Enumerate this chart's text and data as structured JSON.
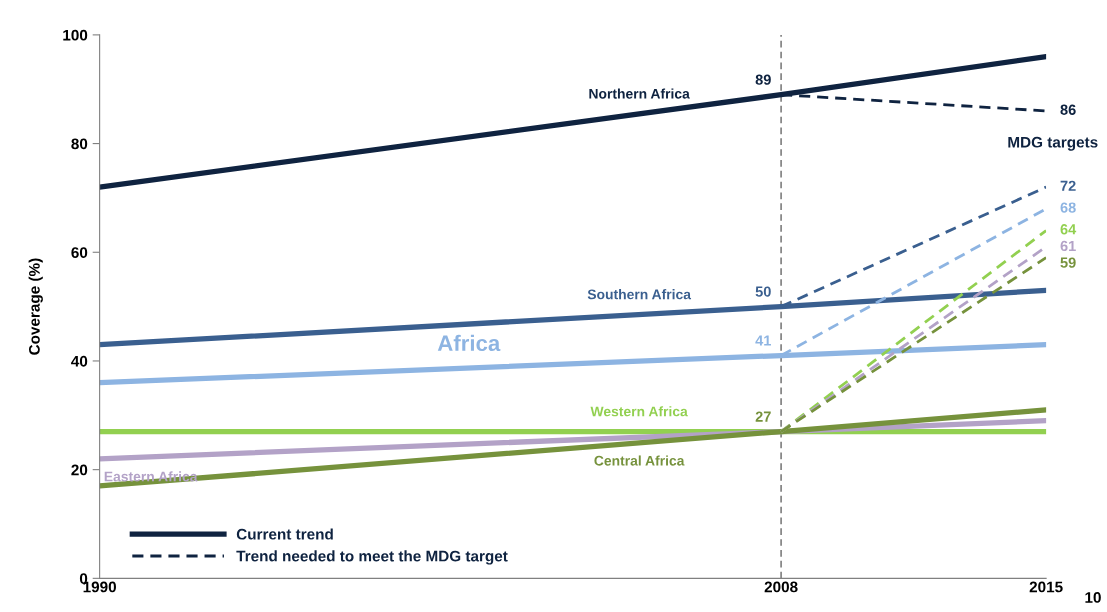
{
  "chart_data": {
    "type": "line",
    "ylabel": "Coverage (%)",
    "xlim": [
      1990,
      2015
    ],
    "xticks": [
      1990,
      2008,
      2015
    ],
    "ylim": [
      0,
      100
    ],
    "yticks": [
      0,
      20,
      40,
      60,
      80,
      100
    ],
    "grid": false,
    "marker": "none",
    "ref_lines": [
      {
        "axis": "x",
        "value": 2008,
        "color": "#808080",
        "line_style": "dashed"
      }
    ],
    "annotations": [
      "MDG targets",
      "Current trend",
      "Trend needed to meet the MDG target",
      "10"
    ],
    "series": [
      {
        "name": "Northern Africa",
        "color": "#0f2340",
        "x": [
          1990,
          2008,
          2015
        ],
        "values": [
          72,
          89,
          96
        ],
        "line_style": "solid",
        "value_labels": [
          null,
          "89",
          null
        ]
      },
      {
        "name": "Southern Africa",
        "color": "#3a5f8f",
        "x": [
          1990,
          2008,
          2015
        ],
        "values": [
          43,
          50,
          53
        ],
        "line_style": "solid",
        "value_labels": [
          null,
          "50",
          null
        ]
      },
      {
        "name": "Africa",
        "color": "#8db4e2",
        "x": [
          1990,
          2008,
          2015
        ],
        "values": [
          36,
          41,
          43
        ],
        "line_style": "solid",
        "value_labels": [
          null,
          "41",
          null
        ]
      },
      {
        "name": "Western Africa",
        "color": "#92d050",
        "x": [
          1990,
          2008,
          2015
        ],
        "values": [
          27,
          27,
          27
        ],
        "line_style": "solid"
      },
      {
        "name": "Eastern Africa",
        "color": "#b3a2c7",
        "x": [
          1990,
          2008,
          2015
        ],
        "values": [
          22,
          27,
          29
        ],
        "line_style": "solid"
      },
      {
        "name": "Central Africa",
        "color": "#76923c",
        "x": [
          1990,
          2008,
          2015
        ],
        "values": [
          17,
          27,
          31
        ],
        "line_style": "solid",
        "value_labels": [
          null,
          "27",
          null
        ]
      },
      {
        "color": "#0f2340",
        "x": [
          2008,
          2015
        ],
        "values": [
          89,
          86
        ],
        "line_style": "dashed",
        "value_labels": [
          null,
          "86"
        ]
      },
      {
        "color": "#3a5f8f",
        "x": [
          2008,
          2015
        ],
        "values": [
          50,
          72
        ],
        "line_style": "dashed",
        "value_labels": [
          null,
          "72"
        ]
      },
      {
        "color": "#8db4e2",
        "x": [
          2008,
          2015
        ],
        "values": [
          41,
          68
        ],
        "line_style": "dashed",
        "value_labels": [
          null,
          "68"
        ]
      },
      {
        "color": "#92d050",
        "x": [
          2008,
          2015
        ],
        "values": [
          27,
          64
        ],
        "line_style": "dashed",
        "value_labels": [
          null,
          "64"
        ]
      },
      {
        "color": "#b3a2c7",
        "x": [
          2008,
          2015
        ],
        "values": [
          27,
          61
        ],
        "line_style": "dashed",
        "value_labels": [
          null,
          "61"
        ]
      },
      {
        "color": "#76923c",
        "x": [
          2008,
          2015
        ],
        "values": [
          27,
          59
        ],
        "line_style": "dashed",
        "value_labels": [
          null,
          "59"
        ]
      }
    ]
  }
}
